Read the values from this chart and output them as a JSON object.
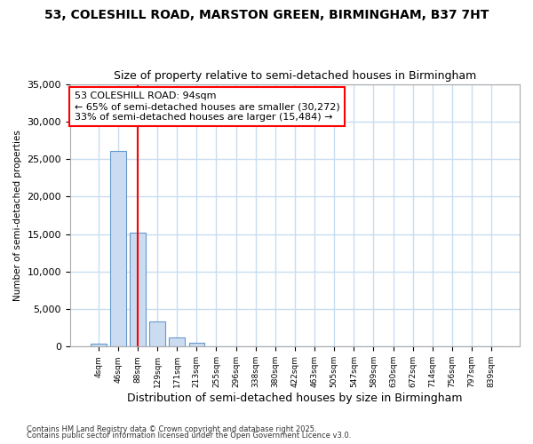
{
  "title1": "53, COLESHILL ROAD, MARSTON GREEN, BIRMINGHAM, B37 7HT",
  "title2": "Size of property relative to semi-detached houses in Birmingham",
  "xlabel": "Distribution of semi-detached houses by size in Birmingham",
  "ylabel": "Number of semi-detached properties",
  "annotation_title": "53 COLESHILL ROAD: 94sqm",
  "annotation_line1": "← 65% of semi-detached houses are smaller (30,272)",
  "annotation_line2": "33% of semi-detached houses are larger (15,484) →",
  "footer1": "Contains HM Land Registry data © Crown copyright and database right 2025.",
  "footer2": "Contains public sector information licensed under the Open Government Licence v3.0.",
  "bin_labels": [
    "4sqm",
    "46sqm",
    "88sqm",
    "129sqm",
    "171sqm",
    "213sqm",
    "255sqm",
    "296sqm",
    "338sqm",
    "380sqm",
    "422sqm",
    "463sqm",
    "505sqm",
    "547sqm",
    "589sqm",
    "630sqm",
    "672sqm",
    "714sqm",
    "756sqm",
    "797sqm",
    "839sqm"
  ],
  "bar_values": [
    400,
    26100,
    15200,
    3300,
    1200,
    500,
    100,
    50,
    0,
    0,
    0,
    0,
    0,
    0,
    0,
    0,
    0,
    0,
    0,
    0,
    0
  ],
  "bar_color": "#ccdcf0",
  "bar_edge_color": "#6699cc",
  "property_line_x": 2,
  "property_line_color": "red",
  "ylim": [
    0,
    35000
  ],
  "yticks": [
    0,
    5000,
    10000,
    15000,
    20000,
    25000,
    30000,
    35000
  ],
  "bg_color": "#ffffff",
  "grid_color": "#c8ddf0",
  "title1_fontsize": 10,
  "title2_fontsize": 9,
  "annotation_fontsize": 8
}
